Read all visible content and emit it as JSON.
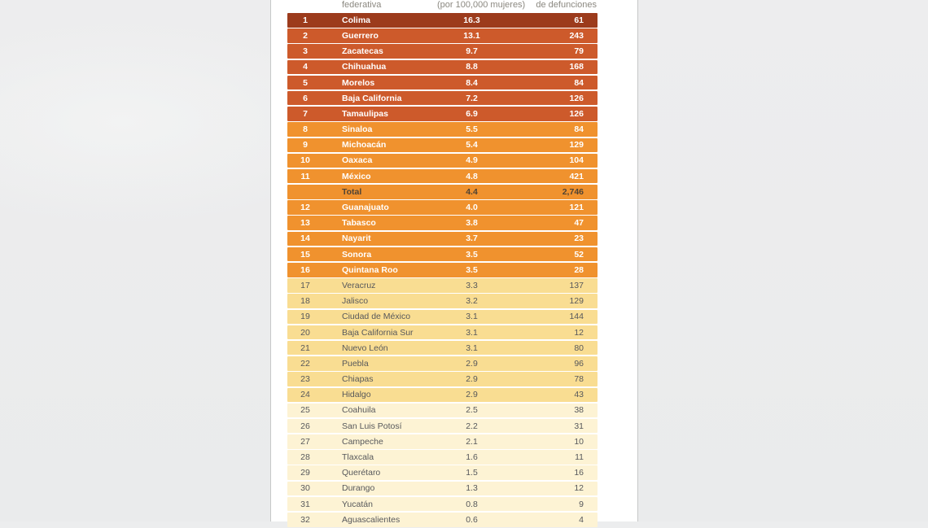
{
  "page": {
    "background": "#ecedee",
    "panel_background": "#ffffff",
    "panel_edge": "#c6c8c8"
  },
  "colors": {
    "header_text": "#8b8880",
    "tiers": {
      "t1": {
        "bg": "#9c3b1c",
        "text": "#ffffff",
        "bold": true
      },
      "t2": {
        "bg": "#cd5a2b",
        "text": "#ffffff",
        "bold": true
      },
      "t3": {
        "bg": "#f0922e",
        "text": "#ffffff",
        "bold": true
      },
      "t3total": {
        "bg": "#f0922e",
        "text": "#4f4334",
        "bold": true
      },
      "t4": {
        "bg": "#f9dd92",
        "text": "#57585b",
        "bold": false
      },
      "t5": {
        "bg": "#fdf3d4",
        "text": "#57585b",
        "bold": false
      }
    }
  },
  "table": {
    "header": {
      "entity_line2": "federativa",
      "rate_line2": "(por 100,000 mujeres)",
      "deaths_line2": "de defunciones"
    },
    "rows": [
      {
        "rank": "1",
        "entity": "Colima",
        "rate": "16.3",
        "deaths": "61",
        "tier": "t1"
      },
      {
        "rank": "2",
        "entity": "Guerrero",
        "rate": "13.1",
        "deaths": "243",
        "tier": "t2"
      },
      {
        "rank": "3",
        "entity": "Zacatecas",
        "rate": "9.7",
        "deaths": "79",
        "tier": "t2"
      },
      {
        "rank": "4",
        "entity": "Chihuahua",
        "rate": "8.8",
        "deaths": "168",
        "tier": "t2"
      },
      {
        "rank": "5",
        "entity": "Morelos",
        "rate": "8.4",
        "deaths": "84",
        "tier": "t2"
      },
      {
        "rank": "6",
        "entity": "Baja California",
        "rate": "7.2",
        "deaths": "126",
        "tier": "t2"
      },
      {
        "rank": "7",
        "entity": "Tamaulipas",
        "rate": "6.9",
        "deaths": "126",
        "tier": "t2"
      },
      {
        "rank": "8",
        "entity": "Sinaloa",
        "rate": "5.5",
        "deaths": "84",
        "tier": "t3"
      },
      {
        "rank": "9",
        "entity": "Michoacán",
        "rate": "5.4",
        "deaths": "129",
        "tier": "t3"
      },
      {
        "rank": "10",
        "entity": "Oaxaca",
        "rate": "4.9",
        "deaths": "104",
        "tier": "t3"
      },
      {
        "rank": "11",
        "entity": "México",
        "rate": "4.8",
        "deaths": "421",
        "tier": "t3"
      },
      {
        "rank": "",
        "entity": "Total",
        "rate": "4.4",
        "deaths": "2,746",
        "tier": "t3total"
      },
      {
        "rank": "12",
        "entity": "Guanajuato",
        "rate": "4.0",
        "deaths": "121",
        "tier": "t3"
      },
      {
        "rank": "13",
        "entity": "Tabasco",
        "rate": "3.8",
        "deaths": "47",
        "tier": "t3"
      },
      {
        "rank": "14",
        "entity": "Nayarit",
        "rate": "3.7",
        "deaths": "23",
        "tier": "t3"
      },
      {
        "rank": "15",
        "entity": "Sonora",
        "rate": "3.5",
        "deaths": "52",
        "tier": "t3"
      },
      {
        "rank": "16",
        "entity": "Quintana Roo",
        "rate": "3.5",
        "deaths": "28",
        "tier": "t3"
      },
      {
        "rank": "17",
        "entity": "Veracruz",
        "rate": "3.3",
        "deaths": "137",
        "tier": "t4"
      },
      {
        "rank": "18",
        "entity": "Jalisco",
        "rate": "3.2",
        "deaths": "129",
        "tier": "t4"
      },
      {
        "rank": "19",
        "entity": "Ciudad de México",
        "rate": "3.1",
        "deaths": "144",
        "tier": "t4"
      },
      {
        "rank": "20",
        "entity": "Baja California Sur",
        "rate": "3.1",
        "deaths": "12",
        "tier": "t4"
      },
      {
        "rank": "21",
        "entity": "Nuevo León",
        "rate": "3.1",
        "deaths": "80",
        "tier": "t4"
      },
      {
        "rank": "22",
        "entity": "Puebla",
        "rate": "2.9",
        "deaths": "96",
        "tier": "t4"
      },
      {
        "rank": "23",
        "entity": "Chiapas",
        "rate": "2.9",
        "deaths": "78",
        "tier": "t4"
      },
      {
        "rank": "24",
        "entity": "Hidalgo",
        "rate": "2.9",
        "deaths": "43",
        "tier": "t4"
      },
      {
        "rank": "25",
        "entity": "Coahuila",
        "rate": "2.5",
        "deaths": "38",
        "tier": "t5"
      },
      {
        "rank": "26",
        "entity": "San Luis Potosí",
        "rate": "2.2",
        "deaths": "31",
        "tier": "t5"
      },
      {
        "rank": "27",
        "entity": "Campeche",
        "rate": "2.1",
        "deaths": "10",
        "tier": "t5"
      },
      {
        "rank": "28",
        "entity": "Tlaxcala",
        "rate": "1.6",
        "deaths": "11",
        "tier": "t5"
      },
      {
        "rank": "29",
        "entity": "Querétaro",
        "rate": "1.5",
        "deaths": "16",
        "tier": "t5"
      },
      {
        "rank": "30",
        "entity": "Durango",
        "rate": "1.3",
        "deaths": "12",
        "tier": "t5"
      },
      {
        "rank": "31",
        "entity": "Yucatán",
        "rate": "0.8",
        "deaths": "9",
        "tier": "t5"
      },
      {
        "rank": "32",
        "entity": "Aguascalientes",
        "rate": "0.6",
        "deaths": "4",
        "tier": "t5"
      }
    ]
  }
}
